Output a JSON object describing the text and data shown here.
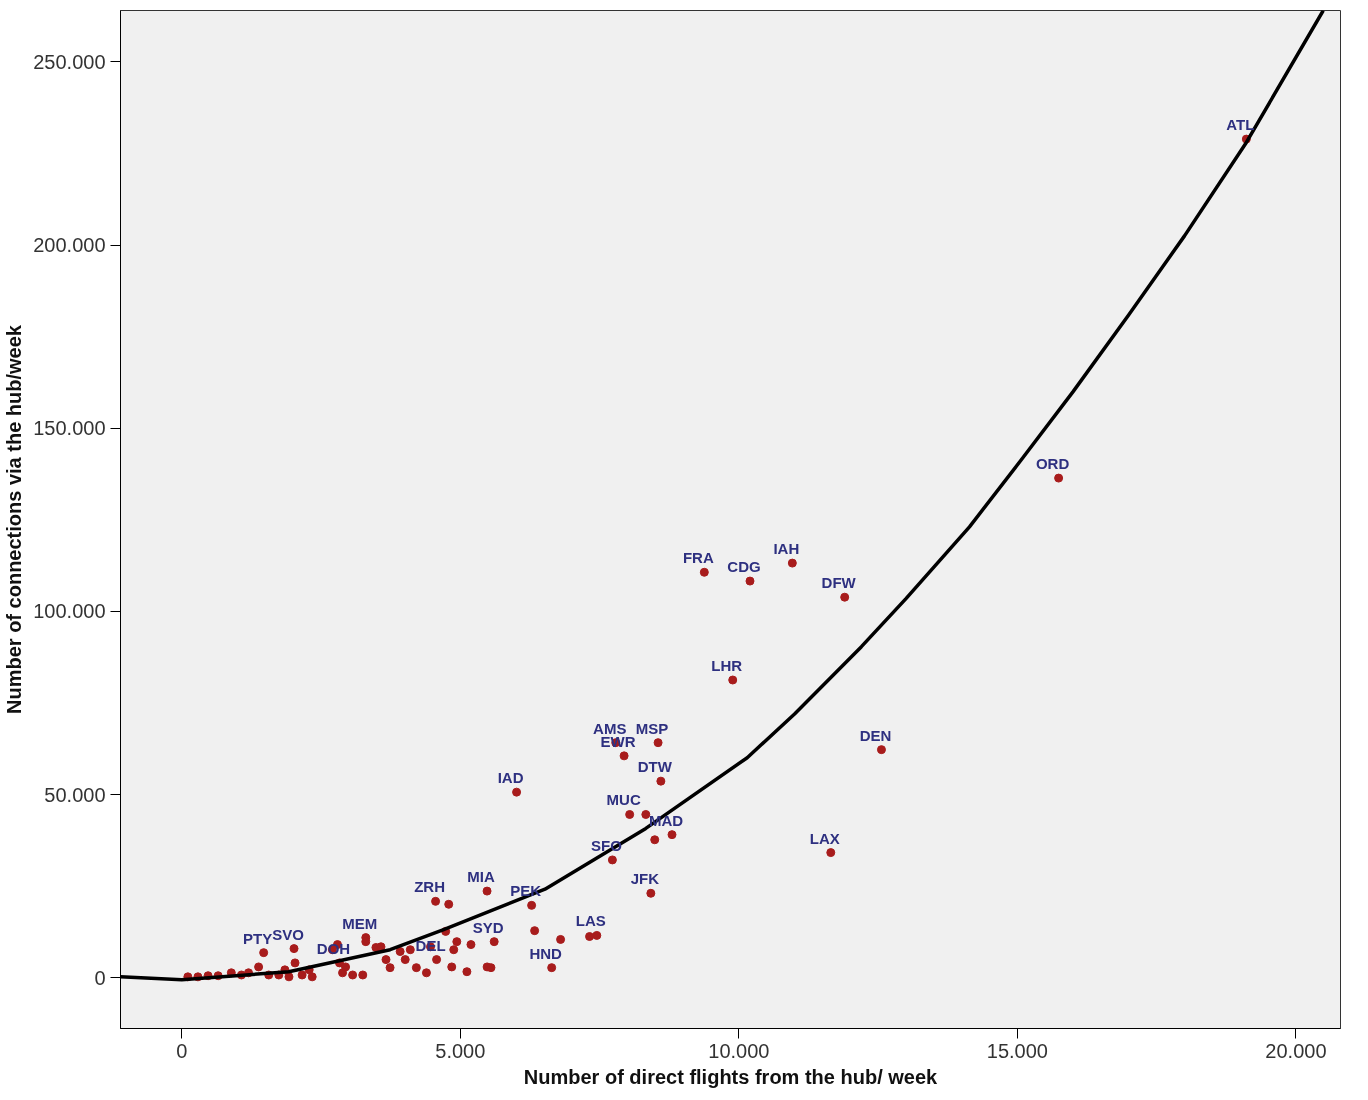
{
  "chart_data": {
    "type": "scatter",
    "xlabel": "Number of direct flights from the hub/ week",
    "ylabel": "Number of connections via the hub/week",
    "xlim": [
      -1100,
      20800
    ],
    "ylim": [
      -13800,
      264000
    ],
    "xticks": [
      {
        "value": 0,
        "label": "0"
      },
      {
        "value": 5000,
        "label": "5.000"
      },
      {
        "value": 10000,
        "label": "10.000"
      },
      {
        "value": 15000,
        "label": "15.000"
      },
      {
        "value": 20000,
        "label": "20.000"
      }
    ],
    "yticks": [
      {
        "value": 0,
        "label": "0"
      },
      {
        "value": 50000,
        "label": "50.000"
      },
      {
        "value": 100000,
        "label": "100.000"
      },
      {
        "value": 150000,
        "label": "150.000"
      },
      {
        "value": 200000,
        "label": "200.000"
      },
      {
        "value": 250000,
        "label": "250.000"
      }
    ],
    "grid": false,
    "marker": "circle",
    "series": [
      {
        "color": "#a81c1c",
        "x": [
          19110,
          15740,
          9380,
          10200,
          10960,
          11900,
          9890,
          12560,
          7790,
          8550,
          8600,
          6010,
          7940,
          8040,
          8330,
          8800,
          8490,
          7730,
          8420,
          11650,
          7450,
          7320,
          6800,
          6640,
          6280,
          5480,
          4556,
          4792,
          5608,
          3303,
          1470,
          2015,
          2831,
          4574,
          109,
          290,
          472,
          653,
          889,
          1071,
          1198,
          1379,
          1561,
          1742,
          1851,
          1924,
          2033,
          2160,
          2287,
          2341,
          2704,
          2795,
          2886,
          2940,
          3067,
          3249,
          3303,
          3485,
          3576,
          3666,
          3739,
          3920,
          4011,
          4102,
          4211,
          4392,
          4737,
          4465,
          4882,
          4937,
          4846,
          5118,
          5191,
          5481,
          6334,
          5550
        ],
        "values": [
          228900,
          136400,
          110700,
          108300,
          113200,
          103900,
          81300,
          62300,
          64200,
          64200,
          53700,
          50700,
          60600,
          44600,
          44600,
          39100,
          37700,
          32200,
          23100,
          34200,
          11600,
          11300,
          10500,
          2800,
          19800,
          23700,
          20900,
          20100,
          9900,
          11000,
          6900,
          8000,
          4100,
          5000,
          300,
          300,
          600,
          600,
          1400,
          800,
          1400,
          3000,
          800,
          800,
          2200,
          300,
          4100,
          800,
          2200,
          300,
          7700,
          9100,
          1400,
          3000,
          800,
          800,
          9900,
          8300,
          8500,
          5000,
          2800,
          7200,
          5000,
          7700,
          2800,
          1400,
          12700,
          8500,
          7700,
          9900,
          3000,
          1700,
          9100,
          3000,
          12900,
          2800
        ]
      },
      {
        "type": "line",
        "color": "#000000",
        "marker": "none",
        "line_style": "solid",
        "x": [
          -1100,
          0,
          1920,
          3740,
          4700,
          6520,
          8330,
          10150,
          11000,
          12200,
          13000,
          14140,
          15050,
          16000,
          17000,
          18000,
          19110,
          20490
        ],
        "values": [
          300,
          -500,
          1700,
          7700,
          13200,
          24200,
          40800,
          60100,
          72000,
          90400,
          103500,
          123100,
          141000,
          160000,
          181000,
          202500,
          228000,
          264000
        ]
      }
    ],
    "annotations": [
      {
        "text": "ATL",
        "x": 19110,
        "y": 228900
      },
      {
        "text": "ORD",
        "x": 15740,
        "y": 136400
      },
      {
        "text": "FRA",
        "x": 9380,
        "y": 110700
      },
      {
        "text": "CDG",
        "x": 10200,
        "y": 108300
      },
      {
        "text": "IAH",
        "x": 10960,
        "y": 113200
      },
      {
        "text": "DFW",
        "x": 11900,
        "y": 103900
      },
      {
        "text": "LHR",
        "x": 9890,
        "y": 81300
      },
      {
        "text": "DEN",
        "x": 12560,
        "y": 62300
      },
      {
        "text": "AMS",
        "x": 7790,
        "y": 64200
      },
      {
        "text": "MSP",
        "x": 8550,
        "y": 64200
      },
      {
        "text": "DTW",
        "x": 8600,
        "y": 53700
      },
      {
        "text": "IAD",
        "x": 6010,
        "y": 50700
      },
      {
        "text": "EWR",
        "x": 7940,
        "y": 60600
      },
      {
        "text": "MUC",
        "x": 8040,
        "y": 44600
      },
      {
        "text": "MAD",
        "x": 8800,
        "y": 39100
      },
      {
        "text": "SFO",
        "x": 7730,
        "y": 32200
      },
      {
        "text": "JFK",
        "x": 8420,
        "y": 23100
      },
      {
        "text": "LAX",
        "x": 11650,
        "y": 34200
      },
      {
        "text": "LAS",
        "x": 7450,
        "y": 11600
      },
      {
        "text": "HND",
        "x": 6640,
        "y": 2800
      },
      {
        "text": "PEK",
        "x": 6280,
        "y": 19800
      },
      {
        "text": "MIA",
        "x": 5480,
        "y": 23700
      },
      {
        "text": "ZRH",
        "x": 4556,
        "y": 20900
      },
      {
        "text": "SYD",
        "x": 5608,
        "y": 9900
      },
      {
        "text": "MEM",
        "x": 3303,
        "y": 11000
      },
      {
        "text": "PTY",
        "x": 1470,
        "y": 6900
      },
      {
        "text": "SVO",
        "x": 2015,
        "y": 8000
      },
      {
        "text": "DOH",
        "x": 2831,
        "y": 4100
      },
      {
        "text": "DEL",
        "x": 4574,
        "y": 5000
      }
    ]
  }
}
